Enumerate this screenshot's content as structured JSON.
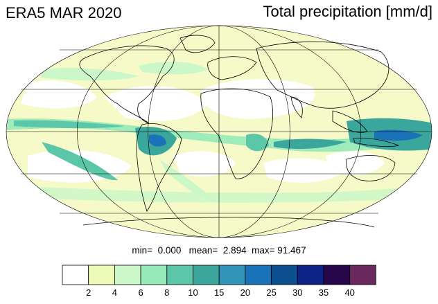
{
  "header": {
    "left_title": "ERA5 MAR 2020",
    "right_title": "Total precipitation [mm/d]"
  },
  "stats": {
    "min_label": "min=",
    "min_value": "0.000",
    "mean_label": "mean=",
    "mean_value": "2.894",
    "max_label": "max=",
    "max_value": "91.467"
  },
  "map": {
    "projection": "mollweide",
    "ocean_fill": "#f5fac8",
    "dry_fill": "#ffffff",
    "coastline_color": "#000000",
    "gridline_color": "#000000"
  },
  "colorbar": {
    "colors": [
      "#ffffff",
      "#eefab8",
      "#ccf7c8",
      "#96eab8",
      "#5cc7a8",
      "#3ba69b",
      "#3294b8",
      "#1a72b8",
      "#0c4f8e",
      "#0e2387",
      "#27064a",
      "#6a2a5e"
    ],
    "labels": [
      "2",
      "4",
      "6",
      "8",
      "10",
      "15",
      "20",
      "25",
      "30",
      "35",
      "40"
    ]
  }
}
